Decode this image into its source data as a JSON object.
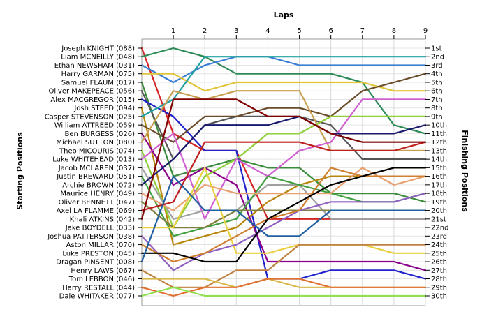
{
  "chart_data": {
    "type": "line",
    "title": "",
    "xlabel": "Laps",
    "ylabel_left": "Starting Positions",
    "ylabel_right": "Finishing Positions",
    "x": [
      0,
      1,
      2,
      3,
      4,
      5,
      6,
      7,
      8,
      9
    ],
    "x_tick_labels": [
      "1",
      "2",
      "3",
      "4",
      "5",
      "6",
      "7",
      "8",
      "9"
    ],
    "ylim": [
      1,
      30
    ],
    "y_inverted": true,
    "grid": true,
    "drivers": [
      "Joseph KNIGHT (088)",
      "Liam MCNEILLY (048)",
      "Ethan NEWSHAM (031)",
      "Harry GARMAN (075)",
      "Samuel FLAUM (017)",
      "Oliver MAKEPEACE (056)",
      "Alex MACGREGOR (015)",
      "Josh STEED (094)",
      "Casper STEVENSON (025)",
      "William ATTREED (059)",
      "Ben BURGESS (026)",
      "Michael SUTTON (080)",
      "Theo MICOURIS (074)",
      "Luke WHITEHEAD (013)",
      "Jacob MCLAREN (037)",
      "Justin BREWARD (051)",
      "Archie BROWN (072)",
      "Maurice HENRY (049)",
      "Oliver BENNETT (047)",
      "Axel LA FLAMME (069)",
      "Khali ATKINS (042)",
      "Jake BOYDELL (033)",
      "Joshua PATTERSON (038)",
      "Aston MILLAR (070)",
      "Luke PRESTON (045)",
      "Dragan PINSENT (008)",
      "Henry LAWS (067)",
      "Tom LEBBON (046)",
      "Harry RESTALL (044)",
      "Dale WHITAKER (077)"
    ],
    "finishing_labels": [
      "1st",
      "2nd",
      "3rd",
      "4th",
      "5th",
      "6th",
      "7th",
      "8th",
      "9th",
      "10th",
      "11th",
      "12th",
      "13th",
      "14th",
      "15th",
      "16th",
      "17th",
      "18th",
      "19th",
      "20th",
      "21st",
      "22nd",
      "23rd",
      "24th",
      "25th",
      "26th",
      "27th",
      "28th",
      "29th",
      "30th"
    ],
    "series": [
      {
        "color": "#d42424",
        "values": [
          1,
          11,
          13,
          13,
          21,
          21,
          21,
          21,
          21,
          21
        ]
      },
      {
        "color": "#2e8b57",
        "values": [
          2,
          1,
          2,
          4,
          4,
          4,
          4,
          5,
          10,
          11
        ]
      },
      {
        "color": "#3a7fd5",
        "values": [
          3,
          5,
          3,
          2,
          2,
          3,
          3,
          3,
          3,
          3
        ]
      },
      {
        "color": "#e0c43a",
        "values": [
          4,
          4,
          6,
          5,
          5,
          5,
          5,
          5,
          6,
          6
        ]
      },
      {
        "color": "#3a8b3a",
        "values": [
          5,
          16,
          15,
          14,
          15,
          15,
          18,
          18,
          18,
          19
        ]
      },
      {
        "color": "#555555",
        "values": [
          6,
          14,
          10,
          9,
          9,
          9,
          10,
          14,
          14,
          14
        ]
      },
      {
        "color": "#2222cc",
        "values": [
          7,
          9,
          13,
          13,
          28,
          28,
          27,
          27,
          27,
          28
        ]
      },
      {
        "color": "#b8860b",
        "values": [
          8,
          24,
          23,
          22,
          19,
          17,
          16,
          16,
          15,
          15
        ]
      },
      {
        "color": "#20a0a0",
        "values": [
          9,
          7,
          2,
          2,
          2,
          2,
          2,
          2,
          2,
          2
        ]
      },
      {
        "color": "#6a4c2a",
        "values": [
          10,
          12,
          9,
          9,
          8,
          8,
          9,
          6,
          5,
          4
        ]
      },
      {
        "color": "#8b008b",
        "values": [
          11,
          17,
          15,
          17,
          26,
          26,
          26,
          26,
          26,
          27
        ]
      },
      {
        "color": "#c8a050",
        "values": [
          12,
          6,
          7,
          6,
          6,
          6,
          13,
          13,
          13,
          13
        ]
      },
      {
        "color": "#8fcf3a",
        "values": [
          13,
          22,
          16,
          14,
          11,
          11,
          9,
          9,
          9,
          9
        ]
      },
      {
        "color": "#d060d0",
        "values": [
          14,
          11,
          21,
          14,
          16,
          13,
          12,
          7,
          7,
          7
        ]
      },
      {
        "color": "#a0a0a0",
        "values": [
          15,
          21,
          20,
          20,
          17,
          17,
          21,
          21,
          21,
          21
        ]
      },
      {
        "color": "#40a040",
        "values": [
          16,
          23,
          22,
          21,
          16,
          17,
          18,
          19,
          19,
          18
        ]
      },
      {
        "color": "#1a1a6e",
        "values": [
          17,
          14,
          10,
          10,
          10,
          9,
          11,
          11,
          11,
          10
        ]
      },
      {
        "color": "#e8a070",
        "values": [
          18,
          20,
          17,
          18,
          18,
          18,
          18,
          15,
          17,
          16
        ]
      },
      {
        "color": "#808040",
        "values": [
          19,
          22,
          22,
          20,
          20,
          20,
          20,
          20,
          20,
          20
        ]
      },
      {
        "color": "#c02020",
        "values": [
          20,
          19,
          12,
          12,
          12,
          12,
          13,
          13,
          13,
          12
        ]
      },
      {
        "color": "#800000",
        "values": [
          21,
          7,
          7,
          7,
          9,
          9,
          11,
          12,
          12,
          12
        ]
      },
      {
        "color": "#e8d040",
        "values": [
          22,
          22,
          15,
          25,
          25,
          24,
          24,
          24,
          25,
          25
        ]
      },
      {
        "color": "#9060c0",
        "values": [
          23,
          27,
          25,
          24,
          22,
          20,
          19,
          19,
          19,
          18
        ]
      },
      {
        "color": "#d08030",
        "values": [
          24,
          26,
          25,
          23,
          21,
          20,
          15,
          16,
          16,
          16
        ]
      },
      {
        "color": "#000000",
        "values": [
          25,
          25,
          26,
          26,
          21,
          19,
          17,
          16,
          15,
          15
        ]
      },
      {
        "color": "#2060a0",
        "values": [
          26,
          16,
          20,
          20,
          23,
          23,
          20,
          20,
          20,
          20
        ]
      },
      {
        "color": "#c08040",
        "values": [
          27,
          29,
          29,
          27,
          27,
          24,
          24,
          24,
          24,
          24
        ]
      },
      {
        "color": "#d8b848",
        "values": [
          28,
          28,
          28,
          29,
          28,
          29,
          29,
          29,
          29,
          29
        ]
      },
      {
        "color": "#e07030",
        "values": [
          29,
          30,
          29,
          29,
          28,
          28,
          29,
          29,
          29,
          29
        ]
      },
      {
        "color": "#90e050",
        "values": [
          30,
          29,
          30,
          30,
          30,
          30,
          30,
          30,
          30,
          30
        ]
      }
    ]
  }
}
